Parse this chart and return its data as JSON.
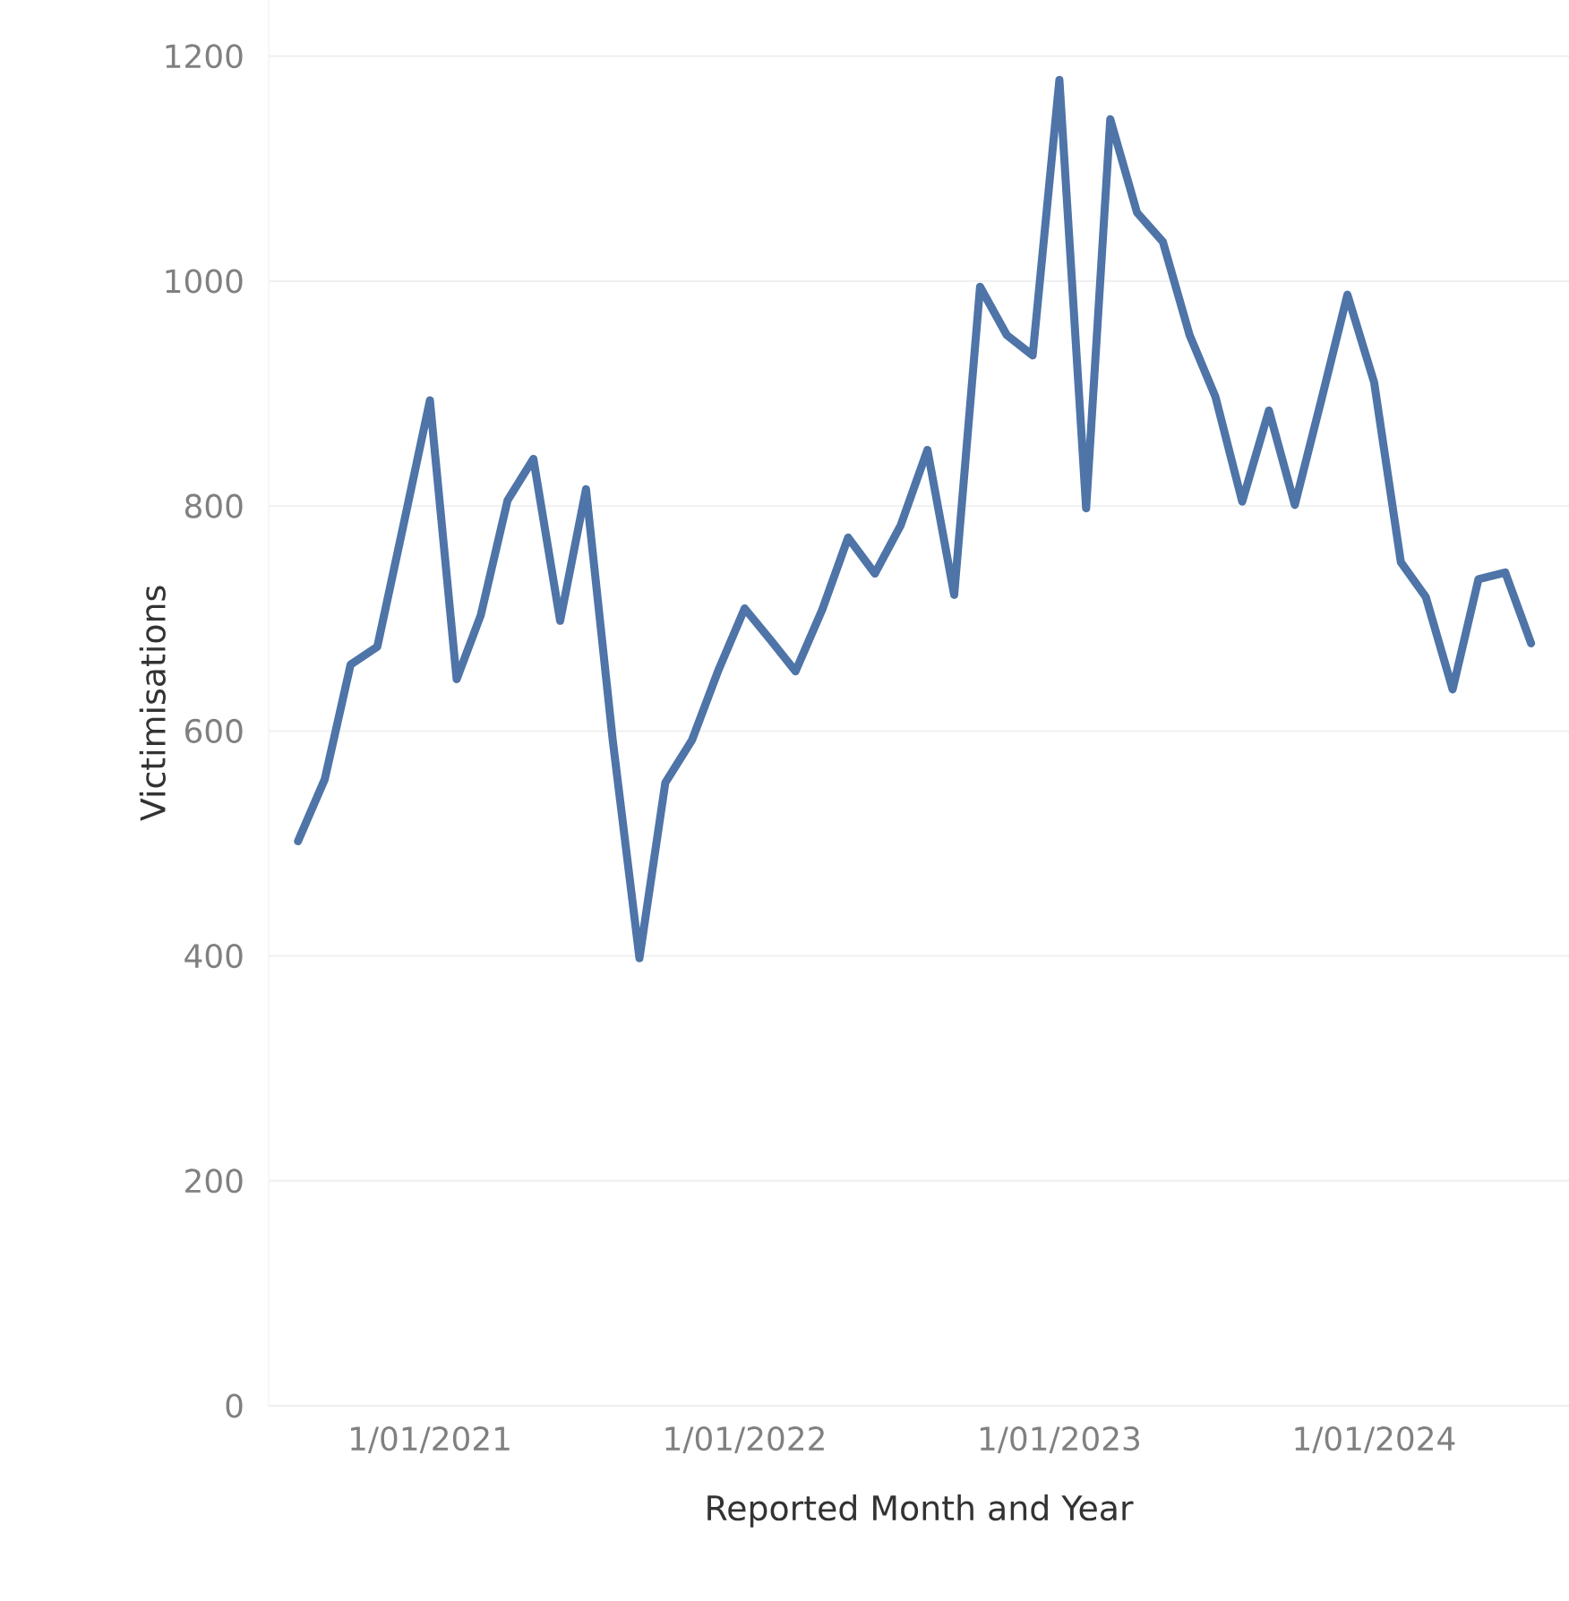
{
  "chart_data": {
    "type": "line",
    "xlabel": "Reported Month and Year",
    "ylabel": "Victimisations",
    "x": [
      "2020-08",
      "2020-09",
      "2020-10",
      "2020-11",
      "2020-12",
      "2021-01",
      "2021-02",
      "2021-03",
      "2021-04",
      "2021-05",
      "2021-06",
      "2021-07",
      "2021-08",
      "2021-09",
      "2021-10",
      "2021-11",
      "2021-12",
      "2022-01",
      "2022-02",
      "2022-03",
      "2022-04",
      "2022-05",
      "2022-06",
      "2022-07",
      "2022-08",
      "2022-09",
      "2022-10",
      "2022-11",
      "2022-12",
      "2023-01",
      "2023-02",
      "2023-03",
      "2023-04",
      "2023-05",
      "2023-06",
      "2023-07",
      "2023-08",
      "2023-09",
      "2023-10",
      "2023-11",
      "2023-12",
      "2024-01",
      "2024-02",
      "2024-03",
      "2024-04",
      "2024-05",
      "2024-06",
      "2024-07"
    ],
    "series": [
      {
        "color": "#4e74a8",
        "values": [
          502,
          557,
          659,
          675,
          782,
          894,
          646,
          703,
          805,
          842,
          698,
          815,
          592,
          398,
          554,
          592,
          653,
          709,
          680,
          653,
          708,
          772,
          740,
          783,
          850,
          721,
          995,
          952,
          934,
          1179,
          798,
          1144,
          1061,
          1035,
          952,
          897,
          804,
          885,
          801,
          895,
          988,
          910,
          750,
          719,
          637,
          735,
          741,
          678
        ]
      }
    ],
    "xlim": [
      "2020-06-28",
      "2024-08-14"
    ],
    "xticks": [
      {
        "value": "2021-01-01",
        "label": "1/01/2021"
      },
      {
        "value": "2022-01-01",
        "label": "1/01/2022"
      },
      {
        "value": "2023-01-01",
        "label": "1/01/2023"
      },
      {
        "value": "2024-01-01",
        "label": "1/01/2024"
      }
    ],
    "ylim": [
      0,
      1250
    ],
    "yticks": [
      0,
      200,
      400,
      600,
      800,
      1000,
      1200
    ],
    "grid": "y",
    "legend": false,
    "marker": "none",
    "line_style": "solid"
  }
}
